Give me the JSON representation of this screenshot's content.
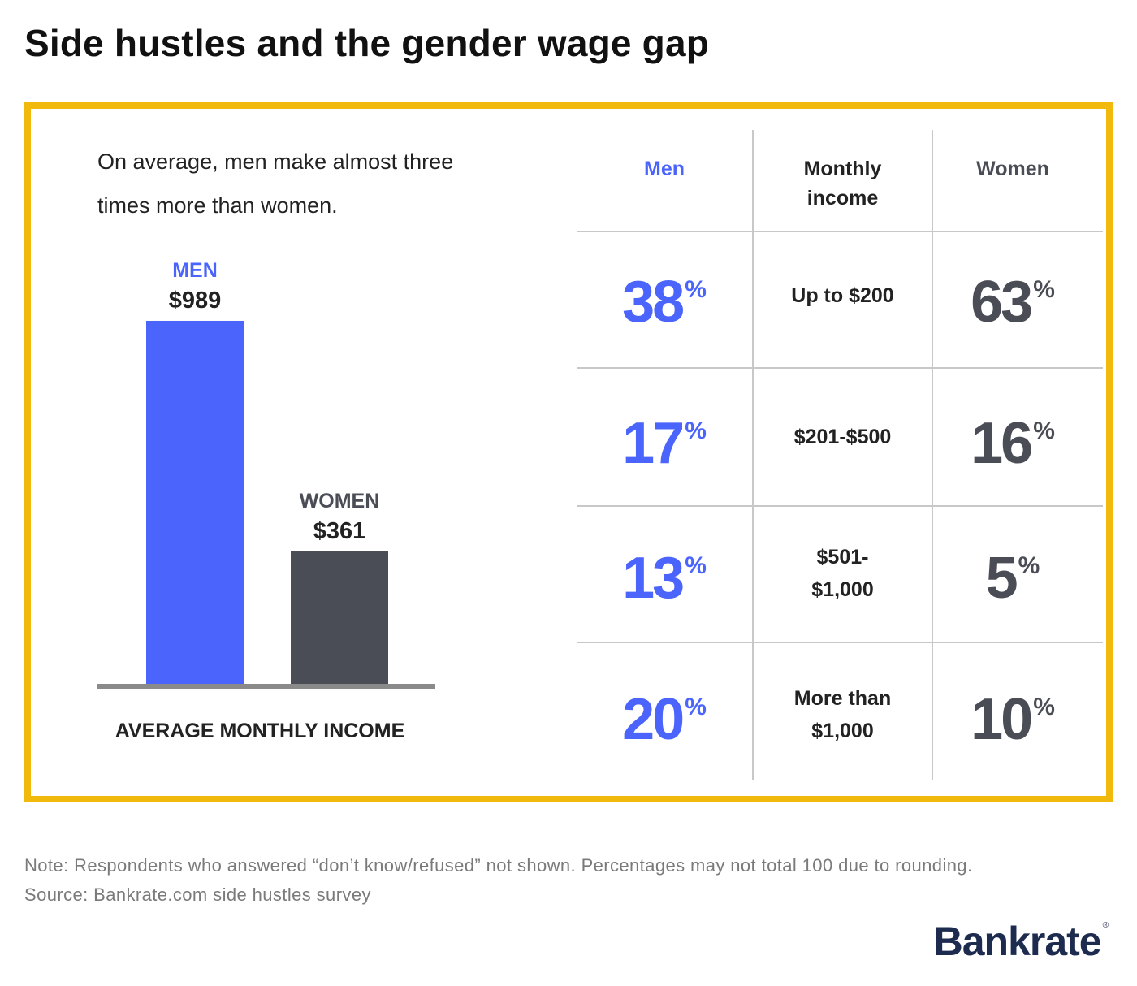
{
  "title": "Side hustles and the gender wage gap",
  "colors": {
    "men": "#4a64fc",
    "women": "#4a4d55",
    "frame": "#f0b90b"
  },
  "intro_text": "On average, men make almost three times more than women.",
  "chart_data": {
    "type": "bar",
    "title": "Side hustles and the gender wage gap",
    "categories": [
      "MEN",
      "WOMEN"
    ],
    "values": [
      989,
      361
    ],
    "value_labels": [
      "$989",
      "$361"
    ],
    "xlabel": "AVERAGE MONTHLY INCOME",
    "ylabel": "",
    "ylim": [
      0,
      1000
    ],
    "colors": [
      "#4a64fc",
      "#4a4d55"
    ],
    "table": {
      "headers": {
        "men": "Men",
        "income": "Monthly income",
        "women": "Women"
      },
      "percent_sign": "%",
      "rows": [
        {
          "income": "Up to $200",
          "men": "38",
          "women": "63"
        },
        {
          "income": "$201-$500",
          "men": "17",
          "women": "16"
        },
        {
          "income_lines": [
            "$501-",
            "$1,000"
          ],
          "men": "13",
          "women": "5"
        },
        {
          "income_lines": [
            "More than",
            "$1,000"
          ],
          "men": "20",
          "women": "10"
        }
      ]
    }
  },
  "footer": {
    "note": "Note: Respondents who answered “don’t know/refused” not shown. Percentages may not total 100 due to rounding.",
    "source": "Source: Bankrate.com side hustles survey"
  },
  "logo": {
    "text": "Bankrate",
    "mark": "®"
  }
}
